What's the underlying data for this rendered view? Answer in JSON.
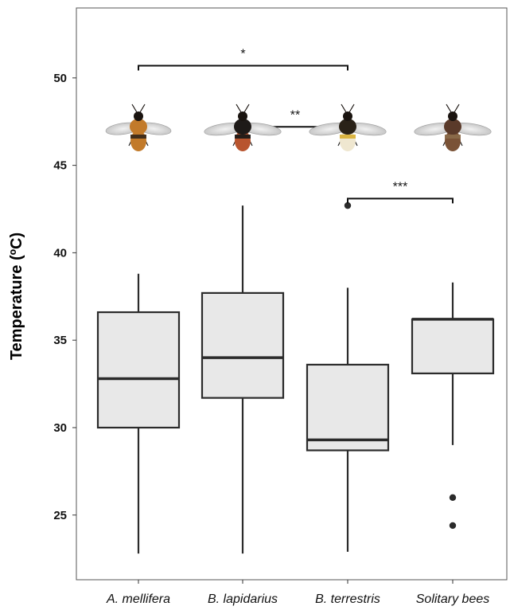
{
  "chart_data": {
    "type": "box",
    "ylabel": "Temperature (ºC)",
    "ylim": [
      21.3,
      54.0
    ],
    "yticks": [
      "25",
      "30",
      "35",
      "40",
      "45",
      "50"
    ],
    "categories": [
      "A. mellifera",
      "B. lapidarius",
      "B. terrestris",
      "Solitary bees"
    ],
    "boxes": [
      {
        "whisker_low": 22.8,
        "q1": 30.0,
        "median": 32.8,
        "q3": 36.6,
        "whisker_high": 38.8,
        "outliers": []
      },
      {
        "whisker_low": 22.8,
        "q1": 31.7,
        "median": 34.0,
        "q3": 37.7,
        "whisker_high": 42.7,
        "outliers": []
      },
      {
        "whisker_low": 22.9,
        "q1": 28.7,
        "median": 29.3,
        "q3": 33.6,
        "whisker_high": 38.0,
        "outliers": [
          42.7
        ]
      },
      {
        "whisker_low": 29.0,
        "q1": 33.1,
        "median": 36.2,
        "q3": 36.2,
        "whisker_high": 38.3,
        "outliers": [
          26.0,
          24.4
        ]
      }
    ],
    "significance": [
      {
        "from": "A. mellifera",
        "to": "B. terrestris",
        "level": 50.7,
        "label": "*"
      },
      {
        "from": "B. lapidarius",
        "to": "B. terrestris",
        "level": 47.2,
        "label": "**"
      },
      {
        "from": "B. terrestris",
        "to": "Solitary bees",
        "level": 43.1,
        "label": "***"
      }
    ],
    "images": [
      "honeybee-icon",
      "red-tailed-bumblebee-icon",
      "buff-tailed-bumblebee-icon",
      "solitary-bee-icon"
    ],
    "colors": {
      "box_fill": "#e8e8e8",
      "stroke": "#2b2b2b"
    }
  }
}
